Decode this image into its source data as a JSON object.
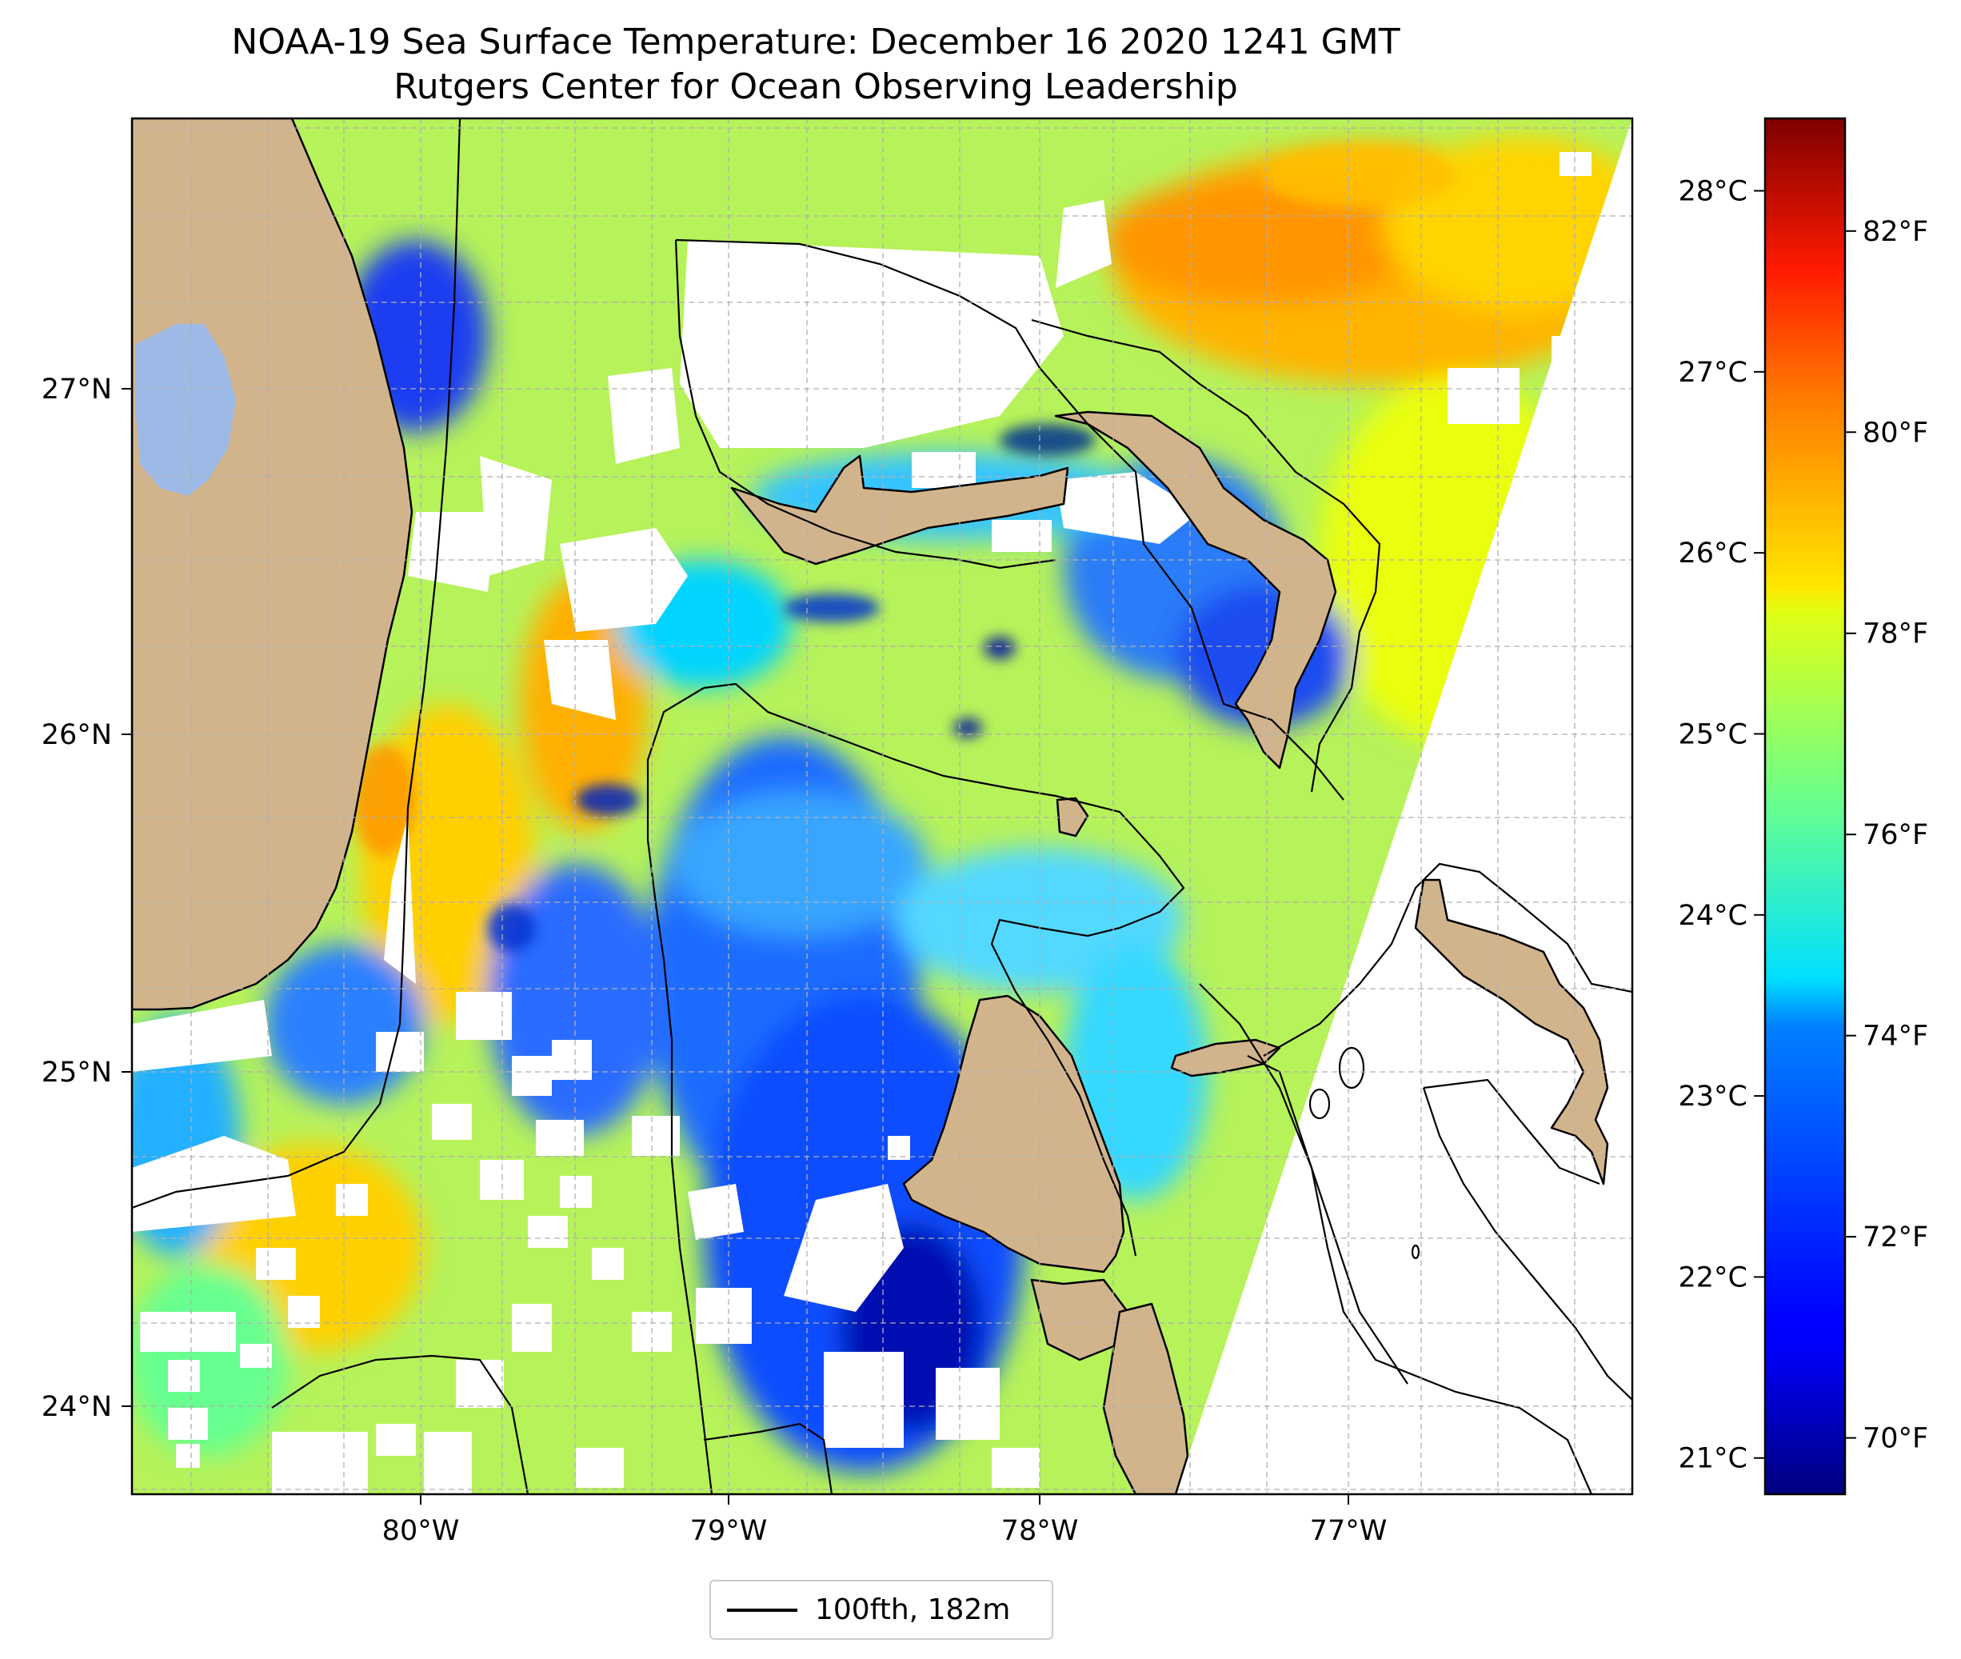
{
  "title": {
    "line1": "NOAA-19 Sea Surface Temperature: December 16 2020 1241 GMT",
    "line2": "Rutgers Center for Ocean Observing Leadership"
  },
  "map": {
    "lon_range": [
      -81.0,
      -76.1
    ],
    "lat_range": [
      23.7,
      27.75
    ],
    "lat_tick_labels": [
      "27°N",
      "26°N",
      "25°N",
      "24°N"
    ],
    "lon_tick_labels": [
      "80°W",
      "79°W",
      "78°W",
      "77°W"
    ],
    "grid": true,
    "colors": {
      "land": "#d2b48c",
      "lake": "#9dbae6",
      "no_data": "#ffffff",
      "coastline": "#000000",
      "gridline": "#b0b0b0"
    }
  },
  "colorbar": {
    "colormap": "jet",
    "range_celsius": [
      20.8,
      28.4
    ],
    "celsius_tick_labels": [
      "28°C",
      "27°C",
      "26°C",
      "25°C",
      "24°C",
      "23°C",
      "22°C",
      "21°C"
    ],
    "fahrenheit_tick_labels": [
      "82°F",
      "80°F",
      "78°F",
      "76°F",
      "74°F",
      "72°F",
      "70°F"
    ]
  },
  "legend": {
    "label": "100fth, 182m",
    "line_color": "#000000"
  }
}
